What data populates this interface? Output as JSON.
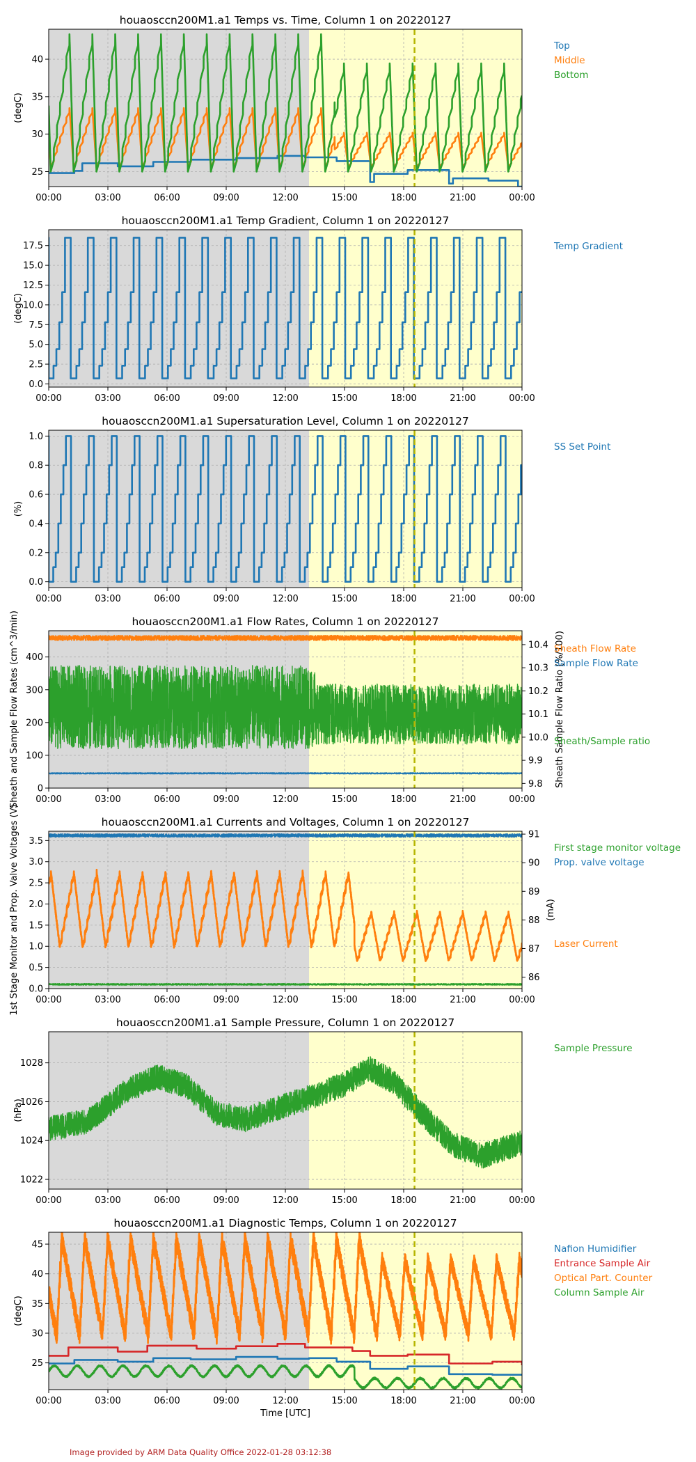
{
  "page": {
    "footer": "Image provided by ARM Data Quality Office 2022-01-28 03:12:38",
    "colors": {
      "blue": "#1f77b4",
      "orange": "#ff7f0e",
      "green": "#2ca02c",
      "red": "#d62728",
      "night_shade": "#d9d9d9",
      "day_shade": "#ffffcc",
      "marker_line": "#b5b500",
      "grid": "#b0b0b0",
      "footer": "#b22222"
    }
  },
  "chart_data": [
    {
      "type": "line",
      "title": "houaosccn200M1.a1 Temps vs. Time, Column 1 on 20220127",
      "ylabel": "(degC)",
      "xlabel": "",
      "x_unit": "hours UTC",
      "xlim": [
        0,
        24
      ],
      "xticks": [
        "00:00",
        "03:00",
        "06:00",
        "09:00",
        "12:00",
        "15:00",
        "18:00",
        "21:00",
        "00:00"
      ],
      "ylim": [
        23,
        44
      ],
      "yticks": [
        25,
        30,
        35,
        40
      ],
      "grid": true,
      "night_shade_until_hour": 13.2,
      "marker_hour": 18.55,
      "legend_position": "right",
      "series": [
        {
          "name": "Top",
          "color": "#1f77b4",
          "kind": "steps",
          "values": [
            [
              0,
              24.8
            ],
            [
              1.3,
              25.1
            ],
            [
              1.7,
              26.1
            ],
            [
              3.5,
              25.7
            ],
            [
              5.3,
              26.3
            ],
            [
              7.2,
              26.6
            ],
            [
              9.5,
              26.8
            ],
            [
              11.6,
              27.1
            ],
            [
              13.0,
              26.9
            ],
            [
              14.6,
              26.4
            ],
            [
              16.3,
              23.6
            ],
            [
              16.5,
              24.7
            ],
            [
              18.2,
              25.2
            ],
            [
              20.3,
              23.4
            ],
            [
              20.5,
              24.1
            ],
            [
              22.3,
              23.8
            ],
            [
              23.8,
              23.0
            ]
          ]
        },
        {
          "name": "Middle",
          "color": "#ff7f0e",
          "kind": "cycle",
          "period": 1.16,
          "phase": 0.1,
          "low": 25.7,
          "high": 33.5,
          "ramp_fraction": 0.82,
          "high_after_hour": 14.5,
          "high_late": 30.2
        },
        {
          "name": "Bottom",
          "color": "#2ca02c",
          "kind": "cycle",
          "period": 1.16,
          "phase": 0.1,
          "low": 25.0,
          "high": 43.4,
          "ramp_fraction": 0.82,
          "high_after_hour": 14.5,
          "high_late": 39.5
        }
      ]
    },
    {
      "type": "line",
      "title": "houaosccn200M1.a1 Temp Gradient, Column 1 on 20220127",
      "ylabel": "(degC)",
      "xlabel": "",
      "xlim": [
        0,
        24
      ],
      "xticks": [
        "00:00",
        "03:00",
        "06:00",
        "09:00",
        "12:00",
        "15:00",
        "18:00",
        "21:00",
        "00:00"
      ],
      "ylim": [
        -0.4,
        19.5
      ],
      "yticks": [
        "0.0",
        "2.5",
        "5.0",
        "7.5",
        "10.0",
        "12.5",
        "15.0",
        "17.5"
      ],
      "grid": true,
      "night_shade_until_hour": 13.2,
      "marker_hour": 18.55,
      "legend_position": "right",
      "series": [
        {
          "name": "Temp Gradient",
          "color": "#1f77b4",
          "kind": "staircase",
          "period": 1.16,
          "phase": 0.1,
          "levels": [
            0.7,
            2.3,
            4.4,
            7.8,
            11.6,
            18.5,
            18.5,
            0.7
          ]
        }
      ]
    },
    {
      "type": "line",
      "title": "houaosccn200M1.a1 Supersaturation Level, Column 1 on 20220127",
      "ylabel": "(%)",
      "xlabel": "",
      "xlim": [
        0,
        24
      ],
      "xticks": [
        "00:00",
        "03:00",
        "06:00",
        "09:00",
        "12:00",
        "15:00",
        "18:00",
        "21:00",
        "00:00"
      ],
      "ylim": [
        -0.04,
        1.04
      ],
      "yticks": [
        "0.0",
        "0.2",
        "0.4",
        "0.6",
        "0.8",
        "1.0"
      ],
      "grid": true,
      "night_shade_until_hour": 13.2,
      "marker_hour": 18.55,
      "legend_position": "right",
      "series": [
        {
          "name": "SS Set Point",
          "color": "#1f77b4",
          "kind": "staircase",
          "period": 1.16,
          "phase": 0.1,
          "levels": [
            0.0,
            0.1,
            0.2,
            0.4,
            0.6,
            0.8,
            1.0,
            1.0,
            0.0
          ]
        }
      ]
    },
    {
      "type": "line",
      "title": "houaosccn200M1.a1 Flow Rates, Column 1 on 20220127",
      "ylabel": "Sheath and Sample Flow Rates (cm^3/min)",
      "ylabel_right": "Sheath Sample Flow Ratio (%/100)",
      "xlabel": "",
      "xlim": [
        0,
        24
      ],
      "xticks": [
        "00:00",
        "03:00",
        "06:00",
        "09:00",
        "12:00",
        "15:00",
        "18:00",
        "21:00",
        "00:00"
      ],
      "ylim": [
        0,
        480
      ],
      "yticks": [
        0,
        100,
        200,
        300,
        400
      ],
      "ylim_right": [
        9.78,
        10.46
      ],
      "yticks_right": [
        "9.8",
        "9.9",
        "10.0",
        "10.1",
        "10.2",
        "10.3",
        "10.4"
      ],
      "grid": true,
      "night_shade_until_hour": 13.2,
      "marker_hour": 18.55,
      "legend_position": "right",
      "series": [
        {
          "name": "Sheath Flow Rate",
          "color": "#ff7f0e",
          "axis": "left",
          "kind": "noise",
          "center": 458,
          "amp": 8
        },
        {
          "name": "Sample Flow Rate",
          "color": "#1f77b4",
          "axis": "left",
          "kind": "noise",
          "center": 45,
          "amp": 2
        },
        {
          "name": "Sheath/Sample ratio",
          "color": "#2ca02c",
          "axis": "right",
          "kind": "noise",
          "center": 10.13,
          "amp": 0.18,
          "amp_after_hour": 13.5,
          "amp_late": 0.13,
          "center_late": 10.1
        }
      ]
    },
    {
      "type": "line",
      "title": "houaosccn200M1.a1 Currents and Voltages, Column 1 on 20220127",
      "ylabel": "1st Stage Monitor and Prop. Valve Voltages (V)",
      "ylabel_right": "(mA)",
      "xlabel": "",
      "xlim": [
        0,
        24
      ],
      "xticks": [
        "00:00",
        "03:00",
        "06:00",
        "09:00",
        "12:00",
        "15:00",
        "18:00",
        "21:00",
        "00:00"
      ],
      "ylim": [
        0,
        3.72
      ],
      "yticks": [
        "0.0",
        "0.5",
        "1.0",
        "1.5",
        "2.0",
        "2.5",
        "3.0",
        "3.5"
      ],
      "ylim_right": [
        85.6,
        91.1
      ],
      "yticks_right": [
        86,
        87,
        88,
        89,
        90,
        91
      ],
      "grid": true,
      "night_shade_until_hour": 13.2,
      "marker_hour": 18.55,
      "legend_position": "right",
      "series": [
        {
          "name": "First stage monitor voltage",
          "color": "#2ca02c",
          "axis": "left",
          "kind": "noise",
          "center": 0.1,
          "amp": 0.02
        },
        {
          "name": "Prop. valve voltage",
          "color": "#1f77b4",
          "axis": "left",
          "kind": "noise",
          "center": 3.62,
          "amp": 0.04
        },
        {
          "name": "Laser Current",
          "color": "#ff7f0e",
          "axis": "right",
          "kind": "cycle",
          "period": 1.16,
          "phase": 0.55,
          "low": 87.1,
          "high": 89.7,
          "ramp_fraction": 0.62,
          "low_after_hour": 15.5,
          "low_late": 86.6,
          "high_after_hour": 15.5,
          "high_late": 88.3,
          "jitter": 0.12
        }
      ]
    },
    {
      "type": "line",
      "title": "houaosccn200M1.a1 Sample Pressure, Column 1 on 20220127",
      "ylabel": "(hPa)",
      "xlabel": "",
      "xlim": [
        0,
        24
      ],
      "xticks": [
        "00:00",
        "03:00",
        "06:00",
        "09:00",
        "12:00",
        "15:00",
        "18:00",
        "21:00",
        "00:00"
      ],
      "ylim": [
        1021.5,
        1029.6
      ],
      "yticks": [
        1022,
        1024,
        1026,
        1028
      ],
      "grid": true,
      "night_shade_until_hour": 13.2,
      "marker_hour": 18.55,
      "legend_position": "right",
      "series": [
        {
          "name": "Sample Pressure",
          "color": "#2ca02c",
          "kind": "trend_noise",
          "amp": 0.65,
          "trend": [
            [
              0,
              1024.6
            ],
            [
              2,
              1025.0
            ],
            [
              4,
              1026.6
            ],
            [
              5.5,
              1027.3
            ],
            [
              7,
              1026.8
            ],
            [
              8.5,
              1025.4
            ],
            [
              10,
              1025.1
            ],
            [
              12,
              1025.8
            ],
            [
              13.5,
              1026.3
            ],
            [
              15,
              1026.9
            ],
            [
              16.3,
              1027.7
            ],
            [
              17.5,
              1027.0
            ],
            [
              19,
              1025.3
            ],
            [
              20.5,
              1023.8
            ],
            [
              22,
              1023.2
            ],
            [
              24,
              1023.9
            ]
          ]
        }
      ]
    },
    {
      "type": "line",
      "title": "houaosccn200M1.a1 Diagnostic Temps, Column 1 on 20220127",
      "ylabel": "(degC)",
      "xlabel": "Time [UTC]",
      "xlim": [
        0,
        24
      ],
      "xticks": [
        "00:00",
        "03:00",
        "06:00",
        "09:00",
        "12:00",
        "15:00",
        "18:00",
        "21:00",
        "00:00"
      ],
      "ylim": [
        20.5,
        47
      ],
      "yticks": [
        25,
        30,
        35,
        40,
        45
      ],
      "grid": true,
      "night_shade_until_hour": 13.2,
      "marker_hour": 18.55,
      "legend_position": "right",
      "series": [
        {
          "name": "Nafion Humidifier",
          "color": "#1f77b4",
          "kind": "steps",
          "values": [
            [
              0,
              24.9
            ],
            [
              1.3,
              25.5
            ],
            [
              3.5,
              25.2
            ],
            [
              5.3,
              25.8
            ],
            [
              7.2,
              25.6
            ],
            [
              9.5,
              26.0
            ],
            [
              11.6,
              25.7
            ],
            [
              13.2,
              25.8
            ],
            [
              14.6,
              25.2
            ],
            [
              16.3,
              24.0
            ],
            [
              18.2,
              24.4
            ],
            [
              20.3,
              23.1
            ],
            [
              22.5,
              23.0
            ],
            [
              24,
              23.0
            ]
          ]
        },
        {
          "name": "Entrance Sample Air",
          "color": "#d62728",
          "kind": "steps",
          "values": [
            [
              0,
              26.2
            ],
            [
              1.0,
              27.6
            ],
            [
              3.5,
              26.9
            ],
            [
              5.0,
              27.9
            ],
            [
              7.5,
              27.4
            ],
            [
              9.5,
              27.8
            ],
            [
              11.6,
              28.2
            ],
            [
              13.0,
              27.6
            ],
            [
              15.4,
              27.0
            ],
            [
              16.3,
              26.2
            ],
            [
              18.2,
              26.4
            ],
            [
              20.3,
              24.9
            ],
            [
              22.5,
              25.2
            ],
            [
              24,
              24.6
            ]
          ]
        },
        {
          "name": "Optical Part. Counter",
          "color": "#ff7f0e",
          "kind": "cycle",
          "period": 1.16,
          "phase": 0.4,
          "low": 29.8,
          "high": 46.0,
          "ramp_fraction": 0.22,
          "high_after_hour": 16.5,
          "high_late": 42.5,
          "jitter": 0.4
        },
        {
          "name": "Column Sample Air",
          "color": "#2ca02c",
          "kind": "wave",
          "center": 23.6,
          "amp": 0.9,
          "period": 1.16,
          "center_after_hour": 15.5,
          "center_late": 21.6,
          "amp_late": 0.8
        }
      ]
    }
  ]
}
